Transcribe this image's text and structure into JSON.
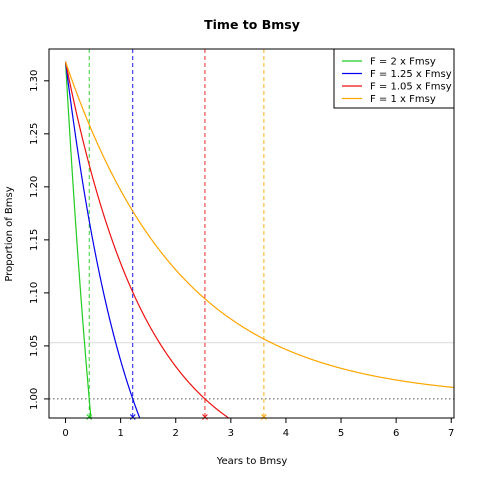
{
  "chart_data": {
    "type": "line",
    "title": "Time to Bmsy",
    "xlabel": "Years to Bmsy",
    "ylabel": "Proportion of Bmsy",
    "xlim": [
      -0.3,
      7.05
    ],
    "ylim": [
      0.982,
      1.33
    ],
    "x_ticks": [
      0,
      1,
      2,
      3,
      4,
      5,
      6,
      7
    ],
    "y_ticks": [
      1.0,
      1.05,
      1.1,
      1.15,
      1.2,
      1.25,
      1.3
    ],
    "y_tick_labels": [
      "1.00",
      "1.05",
      "1.10",
      "1.15",
      "1.20",
      "1.25",
      "1.30"
    ],
    "start_value": 1.318,
    "reference_lines": [
      {
        "y": 1.0,
        "style": "dotted",
        "color": "#555555"
      },
      {
        "y": 1.053,
        "style": "solid",
        "color": "#d9d9d9"
      }
    ],
    "legend_position": "top-right",
    "series": [
      {
        "name": "F = 2 x Fmsy",
        "color": "#22cc22",
        "rate": 0.6,
        "crossing_year": 0.43
      },
      {
        "name": "F = 1.25 x Fmsy",
        "color": "#0000ee",
        "rate": 0.18,
        "crossing_year": 1.22
      },
      {
        "name": "F = 1.05 x Fmsy",
        "color": "#ee1111",
        "rate": 0.072,
        "crossing_year": 2.53
      },
      {
        "name": "F = 1 x Fmsy",
        "color": "#ffa500",
        "rate": 0.0,
        "crossing_year": 3.6,
        "decay": 0.48
      }
    ]
  }
}
